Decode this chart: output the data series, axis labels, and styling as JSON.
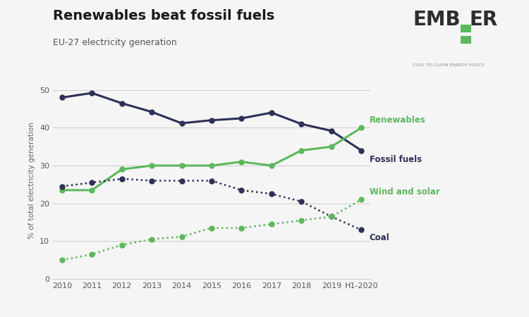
{
  "title": "Renewables beat fossil fuels",
  "subtitle": "EU-27 electricity generation",
  "ylabel": "% of total electricity generation",
  "years": [
    "2010",
    "2011",
    "2012",
    "2013",
    "2014",
    "2015",
    "2016",
    "2017",
    "2018",
    "2019",
    "H1-2020"
  ],
  "fossil_fuels": [
    48,
    49.2,
    46.5,
    44.2,
    41.2,
    42,
    42.5,
    44,
    41,
    39.2,
    34
  ],
  "renewables": [
    23.5,
    23.5,
    29,
    30,
    30,
    30,
    31,
    30,
    34,
    35,
    40
  ],
  "coal": [
    24.5,
    25.5,
    26.5,
    26,
    26,
    26,
    23.5,
    22.5,
    20.5,
    16.5,
    13
  ],
  "wind_solar": [
    5,
    6.5,
    9,
    10.5,
    11.2,
    13.5,
    13.5,
    14.5,
    15.5,
    16.5,
    21
  ],
  "fossil_color": "#2d3057",
  "renewables_color": "#5cb85c",
  "background_color": "#f5f5f5",
  "ylim": [
    0,
    52
  ],
  "yticks": [
    0,
    10,
    20,
    30,
    40,
    50
  ],
  "ember_text_color": "#2d2d2d",
  "ember_green": "#5cb85c",
  "ember_subtitle": "COAL TO CLEAN ENERGY POLICY"
}
